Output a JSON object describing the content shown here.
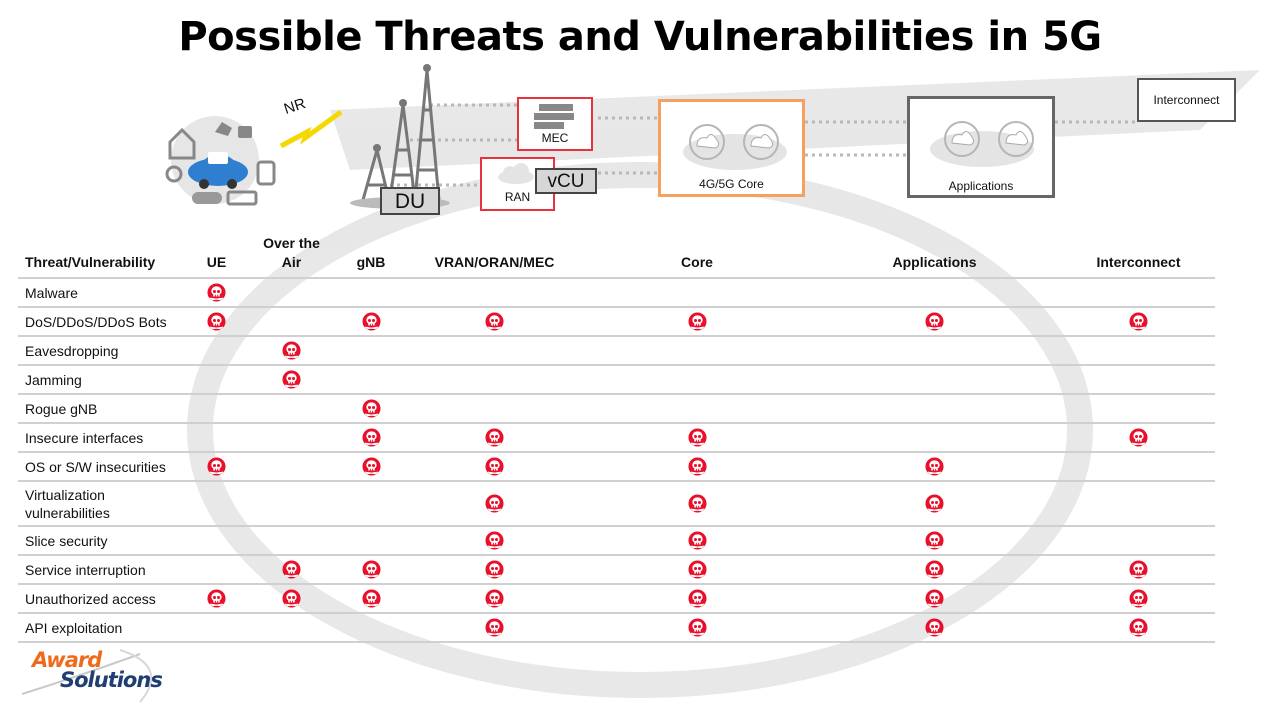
{
  "title": "Possible Threats and Vulnerabilities in 5G",
  "diagram": {
    "nr_label": "NR",
    "du_label": "DU",
    "vcu_label": "vCU",
    "mec_label": "MEC",
    "ran_label": "RAN",
    "core_label": "4G/5G Core",
    "apps_label": "Applications",
    "interconnect_label": "Interconnect"
  },
  "colors": {
    "threat_red": "#e8102a",
    "ran_border": "#e8333f",
    "core_border": "#f4a060",
    "apps_border": "#666666",
    "grid_line": "#d0d0d0"
  },
  "table": {
    "headers": [
      "Threat/Vulnerability",
      "UE",
      "Over the Air",
      "gNB",
      "VRAN/ORAN/MEC",
      "Core",
      "Applications",
      "Interconnect"
    ],
    "rows": [
      {
        "label": "Malware",
        "marks": [
          1,
          0,
          0,
          0,
          0,
          0,
          0
        ]
      },
      {
        "label": "DoS/DDoS/DDoS Bots",
        "marks": [
          1,
          0,
          1,
          1,
          1,
          1,
          1
        ]
      },
      {
        "label": "Eavesdropping",
        "marks": [
          0,
          1,
          0,
          0,
          0,
          0,
          0
        ]
      },
      {
        "label": "Jamming",
        "marks": [
          0,
          1,
          0,
          0,
          0,
          0,
          0
        ]
      },
      {
        "label": "Rogue gNB",
        "marks": [
          0,
          0,
          1,
          0,
          0,
          0,
          0
        ]
      },
      {
        "label": "Insecure interfaces",
        "marks": [
          0,
          0,
          1,
          1,
          1,
          0,
          1
        ]
      },
      {
        "label": "OS or S/W insecurities",
        "marks": [
          1,
          0,
          1,
          1,
          1,
          1,
          0
        ]
      },
      {
        "label": "Virtualization vulnerabilities",
        "marks": [
          0,
          0,
          0,
          1,
          1,
          1,
          0
        ]
      },
      {
        "label": "Slice security",
        "marks": [
          0,
          0,
          0,
          1,
          1,
          1,
          0
        ]
      },
      {
        "label": "Service interruption",
        "marks": [
          0,
          1,
          1,
          1,
          1,
          1,
          1
        ]
      },
      {
        "label": "Unauthorized access",
        "marks": [
          1,
          1,
          1,
          1,
          1,
          1,
          1
        ]
      },
      {
        "label": "API exploitation",
        "marks": [
          0,
          0,
          0,
          1,
          1,
          1,
          1
        ]
      }
    ]
  },
  "logo": {
    "line1": "Award",
    "line2": "Solutions"
  }
}
